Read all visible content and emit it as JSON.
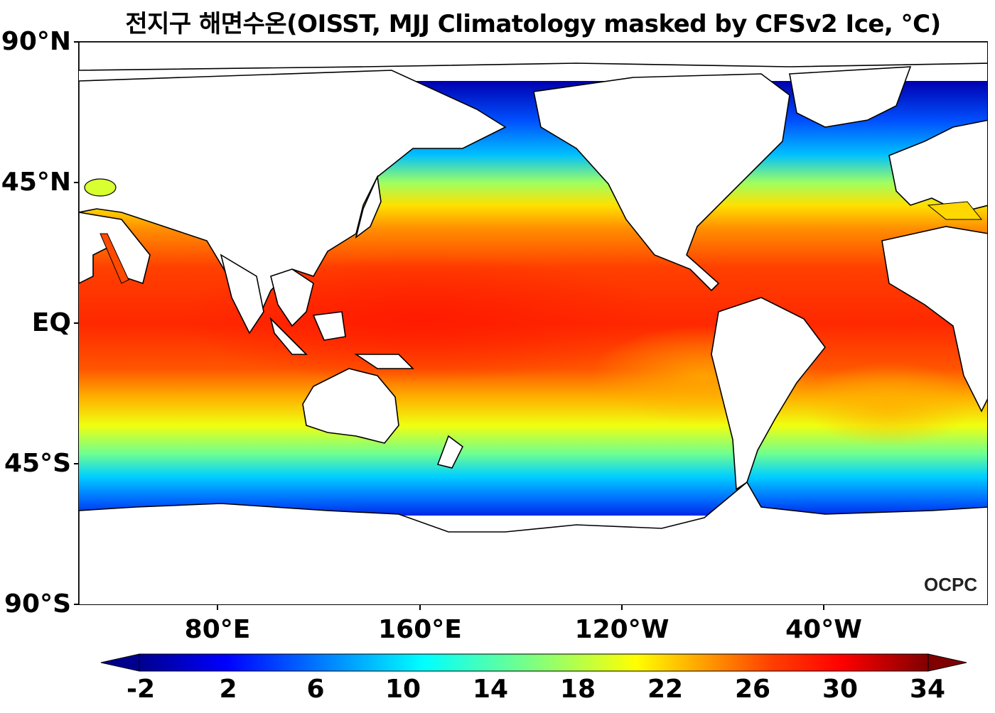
{
  "title": "전지구 해면수온(OISST, MJJ Climatology masked by CFSv2 Ice, °C)",
  "y_labels": [
    "90°N",
    "45°N",
    "EQ",
    "45°S",
    "90°S"
  ],
  "x_labels": [
    "80°E",
    "160°E",
    "120°W",
    "40°W"
  ],
  "colorbar": {
    "ticks": [
      "-2",
      "2",
      "6",
      "10",
      "14",
      "18",
      "22",
      "26",
      "30",
      "34"
    ],
    "min": -2,
    "max": 34,
    "extend": "both",
    "colormap": "jet"
  },
  "logo": "OCPC",
  "colors": {
    "coldest": "#00007f",
    "cold": "#0000ff",
    "cool": "#00c8ff",
    "mild": "#7fff7f",
    "warm": "#ffff00",
    "hot": "#ff7f00",
    "hottest": "#ff2000",
    "extreme": "#7f0000",
    "land": "#ffffff"
  }
}
